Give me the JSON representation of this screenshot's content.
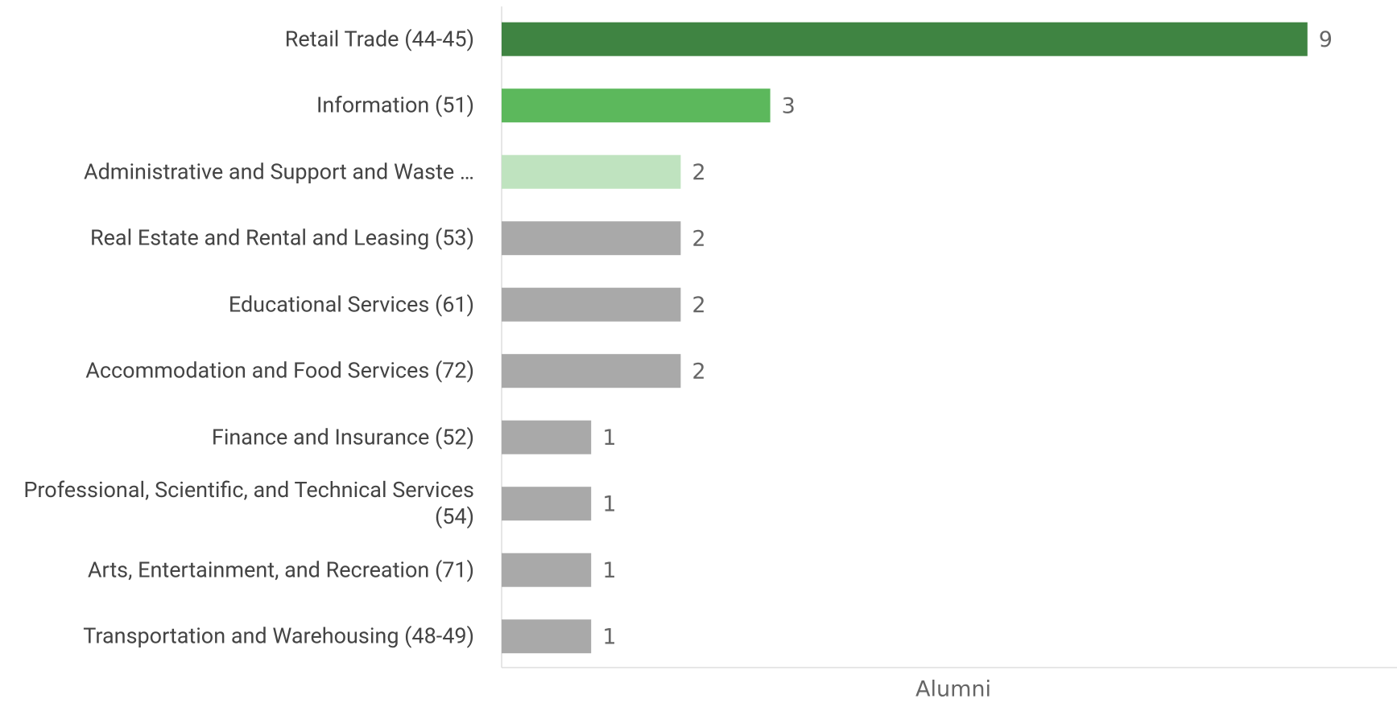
{
  "chart_data": {
    "type": "bar",
    "orientation": "horizontal",
    "categories": [
      "Retail Trade (44-45)",
      "Information (51)",
      "Administrative and Support and Waste …",
      "Real Estate and Rental and Leasing (53)",
      "Educational Services (61)",
      "Accommodation and Food Services (72)",
      "Finance and Insurance (52)",
      "Professional, Scientific, and Technical Services (54)",
      "Arts, Entertainment, and Recreation (71)",
      "Transportation and Warehousing (48-49)"
    ],
    "values": [
      9,
      3,
      2,
      2,
      2,
      2,
      1,
      1,
      1,
      1
    ],
    "colors": [
      "#3f8442",
      "#5cb85c",
      "#bfe3bf",
      "#a9a9a9",
      "#a9a9a9",
      "#a9a9a9",
      "#a9a9a9",
      "#a9a9a9",
      "#a9a9a9",
      "#a9a9a9"
    ],
    "x_label": "Alumni",
    "xlim": [
      0,
      10
    ]
  }
}
